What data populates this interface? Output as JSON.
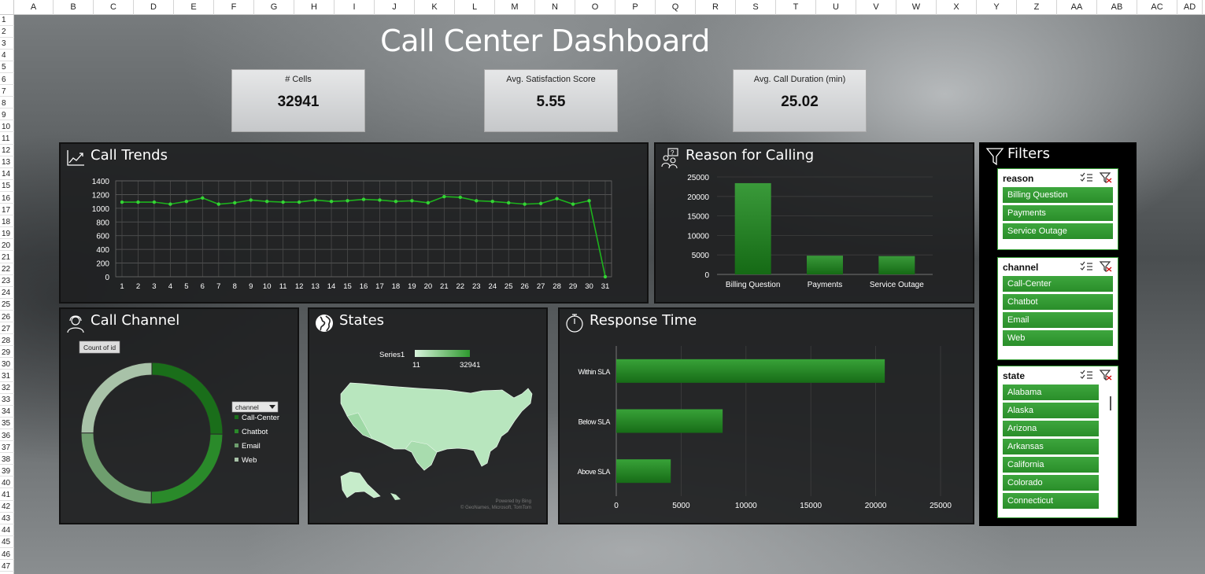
{
  "columns": [
    "A",
    "B",
    "C",
    "D",
    "E",
    "F",
    "G",
    "H",
    "I",
    "J",
    "K",
    "L",
    "M",
    "N",
    "O",
    "P",
    "Q",
    "R",
    "S",
    "T",
    "U",
    "V",
    "W",
    "X",
    "Y",
    "Z",
    "AA",
    "AB",
    "AC",
    "AD"
  ],
  "rows": [
    "1",
    "2",
    "3",
    "4",
    "5",
    "6",
    "7",
    "8",
    "9",
    "10",
    "11",
    "12",
    "13",
    "14",
    "15",
    "16",
    "17",
    "18",
    "19",
    "20",
    "21",
    "22",
    "23",
    "24",
    "25",
    "26",
    "27",
    "28",
    "29",
    "30",
    "31",
    "32",
    "33",
    "34",
    "35",
    "36",
    "37",
    "38",
    "39",
    "40",
    "41",
    "42",
    "43",
    "44",
    "45",
    "46",
    "47"
  ],
  "title": "Call Center Dashboard",
  "kpis": [
    {
      "label": "# Cells",
      "value": "32941"
    },
    {
      "label": "Avg. Satisfaction Score",
      "value": "5.55"
    },
    {
      "label": "Avg. Call Duration (min)",
      "value": "25.02"
    }
  ],
  "panels": {
    "call_trends": "Call Trends",
    "reason": "Reason for Calling",
    "channel": "Call Channel",
    "states": "States",
    "response": "Response Time"
  },
  "colors": {
    "accent": "#2e9a2e",
    "dark_green": "#166a16",
    "light_green": "#b8e6be"
  },
  "chart_data": [
    {
      "type": "line",
      "title": "Call Trends",
      "x": [
        1,
        2,
        3,
        4,
        5,
        6,
        7,
        8,
        9,
        10,
        11,
        12,
        13,
        14,
        15,
        16,
        17,
        18,
        19,
        20,
        21,
        22,
        23,
        24,
        25,
        26,
        27,
        28,
        29,
        30,
        31
      ],
      "values": [
        1090,
        1090,
        1090,
        1060,
        1100,
        1150,
        1060,
        1080,
        1120,
        1100,
        1090,
        1090,
        1120,
        1100,
        1110,
        1130,
        1120,
        1100,
        1110,
        1080,
        1170,
        1160,
        1110,
        1100,
        1080,
        1060,
        1070,
        1140,
        1060,
        1110,
        0
      ],
      "ylim": [
        0,
        1400
      ],
      "yticks": [
        "0",
        "200",
        "400",
        "600",
        "800",
        "1000",
        "1200",
        "1400"
      ],
      "grid": true
    },
    {
      "type": "bar",
      "title": "Reason for Calling",
      "categories": [
        "Billing Question",
        "Payments",
        "Service Outage"
      ],
      "values": [
        23400,
        4800,
        4700
      ],
      "ylim": [
        0,
        25000
      ],
      "yticks": [
        "0",
        "5000",
        "10000",
        "15000",
        "20000",
        "25000"
      ]
    },
    {
      "type": "pie",
      "title": "Call Channel",
      "field_button": "Count of id",
      "legend_dropdown": "channel",
      "categories": [
        "Call-Center",
        "Chatbot",
        "Email",
        "Web"
      ],
      "values": [
        8300,
        8200,
        8200,
        8200
      ],
      "colors": [
        "#1a6e1a",
        "#2a8a2a",
        "#6e9e6e",
        "#a8c2a8"
      ]
    },
    {
      "type": "map",
      "title": "States",
      "legend_series": "Series1",
      "legend_min": "11",
      "legend_max": "32941",
      "attribution_1": "Powered by Bing",
      "attribution_2": "© GeoNames, Microsoft, TomTom"
    },
    {
      "type": "bar",
      "orientation": "horizontal",
      "title": "Response Time",
      "categories": [
        "Within SLA",
        "Below SLA",
        "Above SLA"
      ],
      "values": [
        20700,
        8200,
        4200
      ],
      "xlim": [
        0,
        25000
      ],
      "xticks": [
        "0",
        "5000",
        "10000",
        "15000",
        "20000",
        "25000"
      ]
    }
  ],
  "filters": {
    "title": "Filters",
    "slicers": [
      {
        "name": "reason",
        "items": [
          "Billing Question",
          "Payments",
          "Service Outage"
        ]
      },
      {
        "name": "channel",
        "items": [
          "Call-Center",
          "Chatbot",
          "Email",
          "Web"
        ]
      },
      {
        "name": "state",
        "items": [
          "Alabama",
          "Alaska",
          "Arizona",
          "Arkansas",
          "California",
          "Colorado",
          "Connecticut"
        ]
      }
    ]
  }
}
